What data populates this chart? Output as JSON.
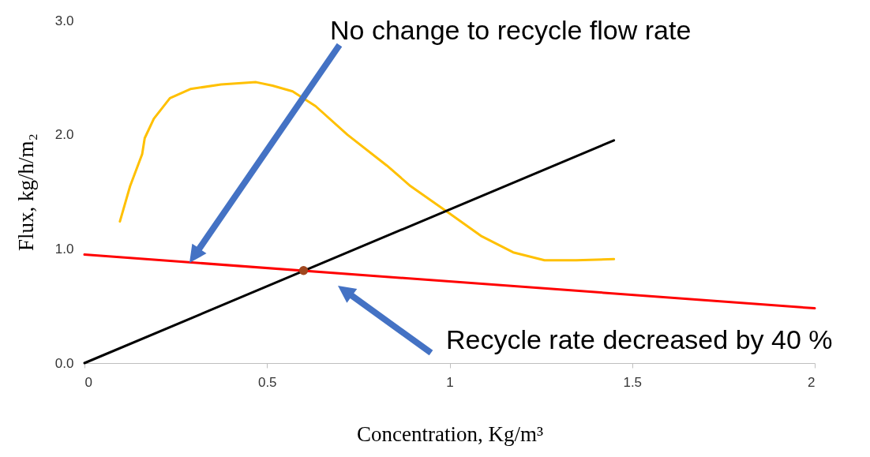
{
  "chart_data": {
    "type": "line",
    "xlabel": "Concentration, Kg/m³",
    "ylabel": "Flux, kg/h/m₂",
    "xlim": [
      0,
      2
    ],
    "xticks": [
      0,
      0.5,
      1,
      1.5,
      2
    ],
    "ylim": [
      0,
      3
    ],
    "yticks": [
      {
        "value": 0,
        "label": "0.0"
      },
      {
        "value": 1,
        "label": "1.0"
      },
      {
        "value": 2,
        "label": "2.0"
      },
      {
        "value": 3,
        "label": "3.0"
      }
    ],
    "marker": "none",
    "line_style": "solid",
    "series": [
      {
        "color": "#ffc000",
        "x": [
          0.097,
          0.125,
          0.158,
          0.165,
          0.19,
          0.234,
          0.29,
          0.374,
          0.47,
          0.515,
          0.57,
          0.633,
          0.72,
          0.828,
          0.893,
          1.0,
          1.088,
          1.174,
          1.26,
          1.347,
          1.45
        ],
        "values": [
          1.24,
          1.55,
          1.83,
          1.97,
          2.14,
          2.32,
          2.4,
          2.44,
          2.46,
          2.43,
          2.38,
          2.25,
          2.0,
          1.73,
          1.55,
          1.31,
          1.11,
          0.97,
          0.9,
          0.9,
          0.91
        ]
      },
      {
        "color": "#000000",
        "x": [
          0,
          1.45
        ],
        "values": [
          0,
          1.95
        ]
      },
      {
        "color": "#ff0000",
        "x": [
          0,
          2
        ],
        "values": [
          0.95,
          0.48
        ]
      },
      {
        "type": "scatter",
        "color": "#a0461e",
        "marker": "circle",
        "x": [
          0.6
        ],
        "values": [
          0.81
        ]
      }
    ],
    "annotations": [
      "No change to recycle flow rate",
      "Recycle rate decreased by 40 %"
    ]
  }
}
